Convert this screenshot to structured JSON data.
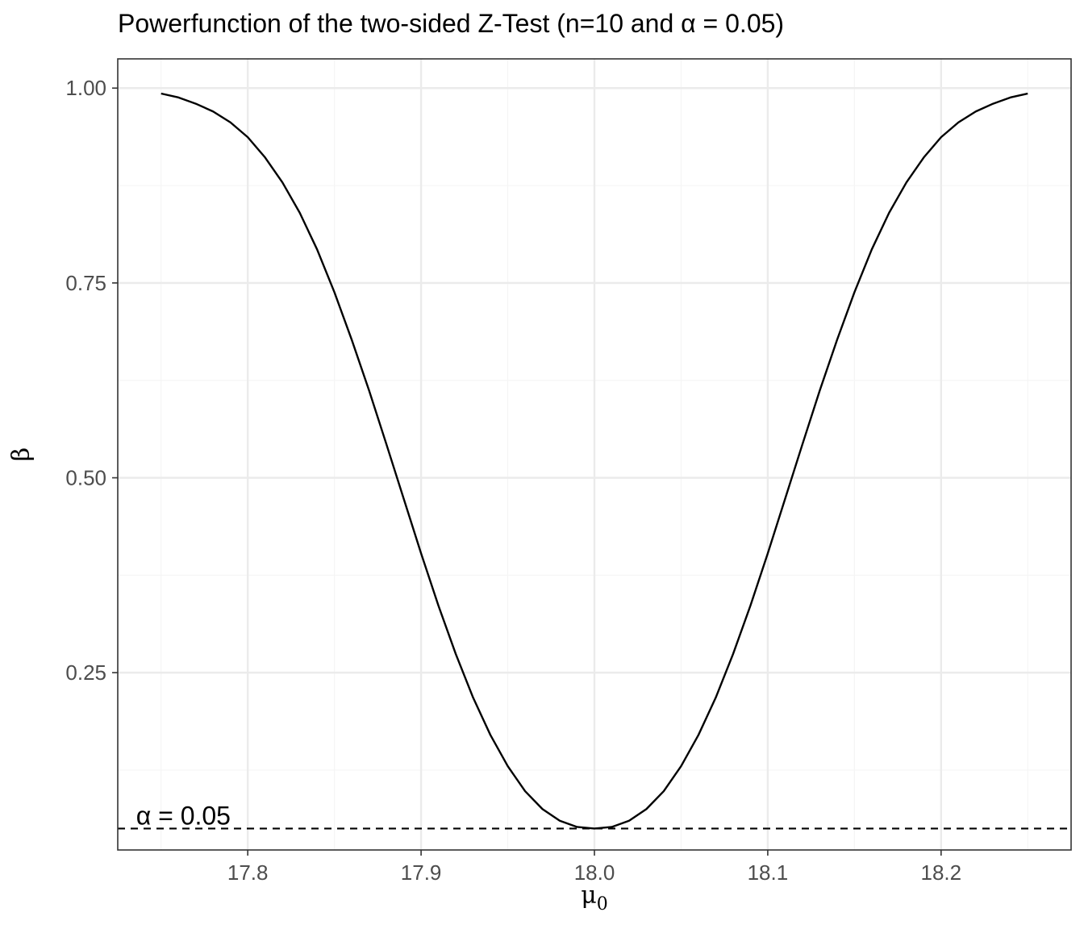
{
  "chart_data": {
    "type": "line",
    "title": "Powerfunction of the two-sided Z-Test (n=10 and α = 0.05)",
    "xlabel": "μ",
    "xlabel_subscript": "0",
    "ylabel": "β",
    "xlim": [
      17.725,
      18.275
    ],
    "ylim": [
      0.0225,
      1.0375
    ],
    "x_ticks": [
      17.8,
      17.9,
      18.0,
      18.1,
      18.2
    ],
    "x_tick_labels": [
      "17.8",
      "17.9",
      "18.0",
      "18.1",
      "18.2"
    ],
    "y_ticks": [
      0.25,
      0.5,
      0.75,
      1.0
    ],
    "y_tick_labels": [
      "0.25",
      "0.50",
      "0.75",
      "1.00"
    ],
    "grid": true,
    "series": [
      {
        "x": [
          17.75,
          17.76,
          17.77,
          17.78,
          17.79,
          17.8,
          17.81,
          17.82,
          17.83,
          17.84,
          17.85,
          17.86,
          17.87,
          17.88,
          17.89,
          17.9,
          17.91,
          17.92,
          17.93,
          17.94,
          17.95,
          17.96,
          17.97,
          17.98,
          17.99,
          18.0,
          18.01,
          18.02,
          18.03,
          18.04,
          18.05,
          18.06,
          18.07,
          18.08,
          18.09,
          18.1,
          18.11,
          18.12,
          18.13,
          18.14,
          18.15,
          18.16,
          18.17,
          18.18,
          18.19,
          18.2,
          18.21,
          18.22,
          18.23,
          18.24,
          18.25
        ],
        "y": [
          0.993,
          0.988,
          0.98,
          0.97,
          0.956,
          0.937,
          0.911,
          0.879,
          0.84,
          0.793,
          0.738,
          0.677,
          0.612,
          0.543,
          0.473,
          0.403,
          0.336,
          0.274,
          0.218,
          0.17,
          0.13,
          0.098,
          0.075,
          0.06,
          0.052,
          0.05,
          0.052,
          0.06,
          0.075,
          0.098,
          0.13,
          0.17,
          0.218,
          0.274,
          0.336,
          0.403,
          0.473,
          0.543,
          0.612,
          0.677,
          0.738,
          0.793,
          0.84,
          0.879,
          0.911,
          0.937,
          0.956,
          0.97,
          0.98,
          0.988,
          0.993
        ],
        "color": "#000000"
      }
    ],
    "hline": {
      "y": 0.05,
      "style": "dashed",
      "color": "#000000"
    },
    "annotation": {
      "text": "α = 0.05",
      "x": 17.75,
      "y": 0.05
    }
  },
  "colors": {
    "panel_border": "#333333",
    "grid_major": "#ebebeb",
    "grid_minor": "#f5f5f5",
    "tick_text": "#4d4d4d"
  }
}
